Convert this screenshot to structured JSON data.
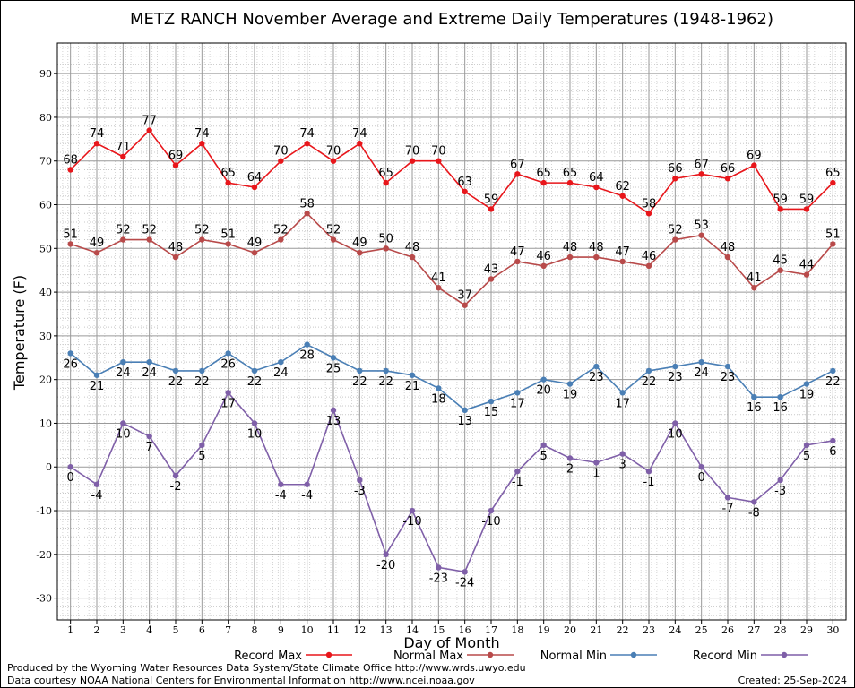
{
  "chart_data": {
    "type": "line",
    "title": "METZ RANCH November Average and Extreme Daily Temperatures (1948-1962)",
    "xlabel": "Day of Month",
    "ylabel": "Temperature (F)",
    "x": [
      1,
      2,
      3,
      4,
      5,
      6,
      7,
      8,
      9,
      10,
      11,
      12,
      13,
      14,
      15,
      16,
      17,
      18,
      19,
      20,
      21,
      22,
      23,
      24,
      25,
      26,
      27,
      28,
      29,
      30
    ],
    "xlim": [
      0.5,
      30.5
    ],
    "ylim": [
      -35,
      97
    ],
    "yticks": [
      -30,
      -20,
      -10,
      0,
      10,
      20,
      30,
      40,
      50,
      60,
      70,
      80,
      90
    ],
    "grid": true,
    "legend_position": "bottom",
    "series": [
      {
        "name": "Record Max",
        "color": "#e8161b",
        "values": [
          68,
          74,
          71,
          77,
          69,
          74,
          65,
          64,
          70,
          74,
          70,
          74,
          65,
          70,
          70,
          63,
          59,
          67,
          65,
          65,
          64,
          62,
          58,
          66,
          67,
          66,
          69,
          59,
          59,
          65
        ],
        "label_position": "above"
      },
      {
        "name": "Normal Max",
        "color": "#b84a4a",
        "values": [
          51,
          49,
          52,
          52,
          48,
          52,
          51,
          49,
          52,
          58,
          52,
          49,
          50,
          48,
          41,
          37,
          43,
          47,
          46,
          48,
          48,
          47,
          46,
          52,
          53,
          48,
          41,
          45,
          44,
          51
        ],
        "label_position": "above"
      },
      {
        "name": "Normal Min",
        "color": "#4a7fb5",
        "values": [
          26,
          21,
          24,
          24,
          22,
          22,
          26,
          22,
          24,
          28,
          25,
          22,
          22,
          21,
          18,
          13,
          15,
          17,
          20,
          19,
          23,
          17,
          22,
          23,
          24,
          23,
          16,
          16,
          19,
          22
        ],
        "label_position": "below"
      },
      {
        "name": "Record Min",
        "color": "#7f5fa8",
        "values": [
          0,
          -4,
          10,
          7,
          -2,
          5,
          17,
          10,
          -4,
          -4,
          13,
          -3,
          -20,
          -10,
          -23,
          -24,
          -10,
          -1,
          5,
          2,
          1,
          3,
          -1,
          10,
          0,
          -7,
          -8,
          -3,
          5,
          6
        ],
        "label_position": "below"
      }
    ]
  },
  "footer": {
    "line1": "Produced by the Wyoming Water Resources Data System/State Climate Office http://www.wrds.uwyo.edu",
    "line2": "Data courtesy NOAA National Centers for Environmental Information http://www.ncei.noaa.gov",
    "created": "Created:  25-Sep-2024"
  }
}
